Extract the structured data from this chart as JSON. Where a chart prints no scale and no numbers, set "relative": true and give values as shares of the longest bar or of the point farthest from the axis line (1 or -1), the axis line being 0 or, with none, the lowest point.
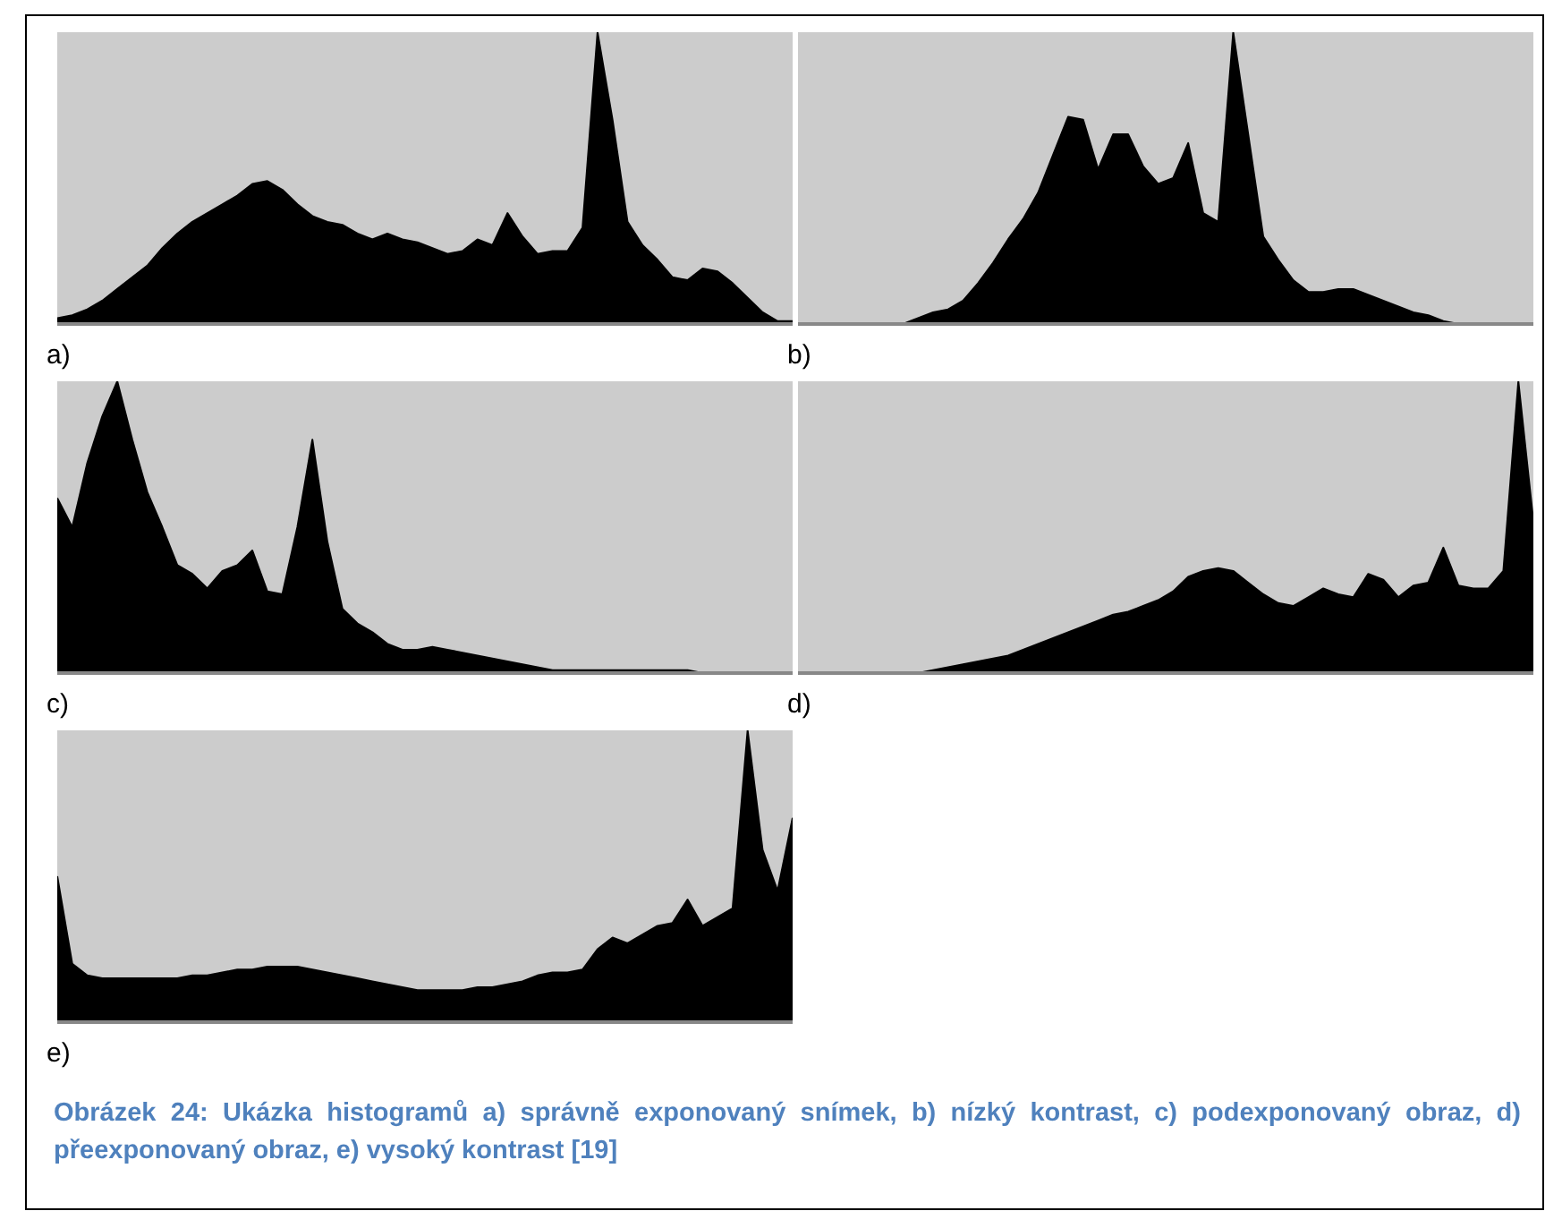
{
  "chart_data": [
    {
      "type": "area",
      "relative": true,
      "xlabel": "a)",
      "categories": [
        null,
        null,
        null,
        null,
        null,
        null,
        null,
        null,
        null,
        null,
        null,
        null,
        null,
        null,
        null,
        null,
        null,
        null,
        null,
        null,
        null,
        null,
        null,
        null,
        null,
        null,
        null,
        null,
        null,
        null,
        null,
        null,
        null,
        null,
        null,
        null,
        null,
        null,
        null,
        null,
        null,
        null,
        null,
        null,
        null,
        null,
        null,
        null,
        null,
        null
      ],
      "series": [
        {
          "color": "#000000",
          "values": [
            0.02,
            0.03,
            0.05,
            0.08,
            0.12,
            0.16,
            0.2,
            0.26,
            0.31,
            0.35,
            0.38,
            0.41,
            0.44,
            0.48,
            0.49,
            0.46,
            0.41,
            0.37,
            0.35,
            0.34,
            0.31,
            0.29,
            0.31,
            0.29,
            0.28,
            0.26,
            0.24,
            0.25,
            0.29,
            0.27,
            0.38,
            0.3,
            0.24,
            0.25,
            0.25,
            0.33,
            1,
            0.7,
            0.35,
            0.27,
            0.22,
            0.16,
            0.15,
            0.19,
            0.18,
            0.14,
            0.09,
            0.04,
            0.01,
            0.01
          ]
        }
      ]
    },
    {
      "type": "area",
      "relative": true,
      "xlabel": "b)",
      "categories": [
        null,
        null,
        null,
        null,
        null,
        null,
        null,
        null,
        null,
        null,
        null,
        null,
        null,
        null,
        null,
        null,
        null,
        null,
        null,
        null,
        null,
        null,
        null,
        null,
        null,
        null,
        null,
        null,
        null,
        null,
        null,
        null,
        null,
        null,
        null,
        null,
        null,
        null,
        null,
        null,
        null,
        null,
        null,
        null,
        null,
        null,
        null,
        null,
        null,
        null
      ],
      "series": [
        {
          "color": "#000000",
          "values": [
            0,
            0,
            0,
            0,
            0,
            0,
            0,
            0,
            0.02,
            0.04,
            0.05,
            0.08,
            0.14,
            0.21,
            0.29,
            0.36,
            0.45,
            0.58,
            0.71,
            0.7,
            0.53,
            0.65,
            0.65,
            0.54,
            0.48,
            0.5,
            0.62,
            0.38,
            0.35,
            1,
            0.65,
            0.3,
            0.22,
            0.15,
            0.11,
            0.11,
            0.12,
            0.12,
            0.1,
            0.08,
            0.06,
            0.04,
            0.03,
            0.01,
            0,
            0,
            0,
            0,
            0,
            0
          ]
        }
      ]
    },
    {
      "type": "area",
      "relative": true,
      "xlabel": "c)",
      "categories": [
        null,
        null,
        null,
        null,
        null,
        null,
        null,
        null,
        null,
        null,
        null,
        null,
        null,
        null,
        null,
        null,
        null,
        null,
        null,
        null,
        null,
        null,
        null,
        null,
        null,
        null,
        null,
        null,
        null,
        null,
        null,
        null,
        null,
        null,
        null,
        null,
        null,
        null,
        null,
        null,
        null,
        null,
        null,
        null,
        null,
        null,
        null,
        null,
        null,
        null
      ],
      "series": [
        {
          "color": "#000000",
          "values": [
            0.6,
            0.5,
            0.72,
            0.88,
            1,
            0.8,
            0.62,
            0.5,
            0.37,
            0.34,
            0.29,
            0.35,
            0.37,
            0.42,
            0.28,
            0.27,
            0.5,
            0.8,
            0.45,
            0.22,
            0.17,
            0.14,
            0.1,
            0.08,
            0.08,
            0.09,
            0.08,
            0.07,
            0.06,
            0.05,
            0.04,
            0.03,
            0.02,
            0.01,
            0.01,
            0.01,
            0.01,
            0.01,
            0.01,
            0.01,
            0.01,
            0.01,
            0.01,
            0,
            0,
            0,
            0,
            0,
            0,
            0
          ]
        }
      ]
    },
    {
      "type": "area",
      "relative": true,
      "xlabel": "d)",
      "categories": [
        null,
        null,
        null,
        null,
        null,
        null,
        null,
        null,
        null,
        null,
        null,
        null,
        null,
        null,
        null,
        null,
        null,
        null,
        null,
        null,
        null,
        null,
        null,
        null,
        null,
        null,
        null,
        null,
        null,
        null,
        null,
        null,
        null,
        null,
        null,
        null,
        null,
        null,
        null,
        null,
        null,
        null,
        null,
        null,
        null,
        null,
        null,
        null,
        null,
        null
      ],
      "series": [
        {
          "color": "#000000",
          "values": [
            0,
            0,
            0,
            0,
            0,
            0,
            0,
            0,
            0,
            0.01,
            0.02,
            0.03,
            0.04,
            0.05,
            0.06,
            0.08,
            0.1,
            0.12,
            0.14,
            0.16,
            0.18,
            0.2,
            0.21,
            0.23,
            0.25,
            0.28,
            0.33,
            0.35,
            0.36,
            0.35,
            0.31,
            0.27,
            0.24,
            0.23,
            0.26,
            0.29,
            0.27,
            0.26,
            0.34,
            0.32,
            0.26,
            0.3,
            0.31,
            0.43,
            0.3,
            0.29,
            0.29,
            0.35,
            1,
            0.52
          ]
        }
      ]
    },
    {
      "type": "area",
      "relative": true,
      "xlabel": "e)",
      "categories": [
        null,
        null,
        null,
        null,
        null,
        null,
        null,
        null,
        null,
        null,
        null,
        null,
        null,
        null,
        null,
        null,
        null,
        null,
        null,
        null,
        null,
        null,
        null,
        null,
        null,
        null,
        null,
        null,
        null,
        null,
        null,
        null,
        null,
        null,
        null,
        null,
        null,
        null,
        null,
        null,
        null,
        null,
        null,
        null,
        null,
        null,
        null,
        null,
        null,
        null
      ],
      "series": [
        {
          "color": "#000000",
          "values": [
            0.5,
            0.2,
            0.16,
            0.15,
            0.15,
            0.15,
            0.15,
            0.15,
            0.15,
            0.16,
            0.16,
            0.17,
            0.18,
            0.18,
            0.19,
            0.19,
            0.19,
            0.18,
            0.17,
            0.16,
            0.15,
            0.14,
            0.13,
            0.12,
            0.11,
            0.11,
            0.11,
            0.11,
            0.12,
            0.12,
            0.13,
            0.14,
            0.16,
            0.17,
            0.17,
            0.18,
            0.25,
            0.29,
            0.27,
            0.3,
            0.33,
            0.34,
            0.42,
            0.33,
            0.36,
            0.39,
            1,
            0.59,
            0.45,
            0.7
          ]
        }
      ],
      "annotations": [
        "Obrázek 24: Ukázka histogramů a) správně exponovaný snímek, b) nízký kontrast, c) podexponovaný obraz, d) přeexponovaný obraz, e) vysoký kontrast [19]"
      ]
    }
  ]
}
